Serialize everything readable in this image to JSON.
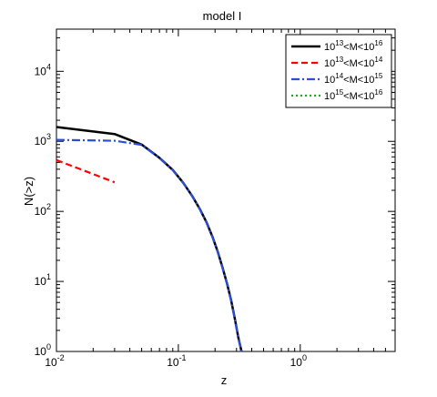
{
  "chart_data": {
    "type": "line",
    "title": "model I",
    "xlabel": "z",
    "ylabel": "N(>z)",
    "xscale": "log",
    "yscale": "log",
    "xlim": [
      0.01,
      6
    ],
    "ylim": [
      1,
      40000
    ],
    "x_ticks": [
      {
        "base": "10",
        "exp": "-2",
        "value": 0.01
      },
      {
        "base": "10",
        "exp": "-1",
        "value": 0.1
      },
      {
        "base": "10",
        "exp": "0",
        "value": 1
      }
    ],
    "y_ticks": [
      {
        "base": "10",
        "exp": "0",
        "value": 1
      },
      {
        "base": "10",
        "exp": "1",
        "value": 10
      },
      {
        "base": "10",
        "exp": "2",
        "value": 100
      },
      {
        "base": "10",
        "exp": "3",
        "value": 1000
      },
      {
        "base": "10",
        "exp": "4",
        "value": 10000
      }
    ],
    "grid": false,
    "legend_position": "top-right",
    "series": [
      {
        "name": "10^13<M<10^16",
        "label_parts": [
          "10",
          "13",
          "<M<10",
          "16"
        ],
        "color": "#000000",
        "style": "solid",
        "x": [
          0.01,
          0.03,
          0.05,
          0.07,
          0.09,
          0.11,
          0.13,
          0.15,
          0.17,
          0.19,
          0.21,
          0.23,
          0.25,
          0.27,
          0.29,
          0.31,
          0.33
        ],
        "y": [
          1600,
          1270,
          900,
          580,
          390,
          255,
          165,
          108,
          70,
          44,
          27,
          16,
          9.5,
          5.5,
          3.0,
          1.6,
          1.0
        ]
      },
      {
        "name": "10^13<M<10^14",
        "label_parts": [
          "10",
          "13",
          "<M<10",
          "14"
        ],
        "color": "#ff0000",
        "style": "dashed",
        "x": [
          0.01,
          0.03
        ],
        "y": [
          540,
          260
        ]
      },
      {
        "name": "10^14<M<10^15",
        "label_parts": [
          "10",
          "14",
          "<M<10",
          "15"
        ],
        "color": "#2a4fd6",
        "style": "dashdot",
        "x": [
          0.01,
          0.03,
          0.05,
          0.07,
          0.09,
          0.11,
          0.13,
          0.15,
          0.17,
          0.19,
          0.21,
          0.23,
          0.25,
          0.27,
          0.29,
          0.31,
          0.33
        ],
        "y": [
          1050,
          1020,
          890,
          575,
          388,
          254,
          164,
          107,
          69,
          43.5,
          26.8,
          15.8,
          9.4,
          5.4,
          2.95,
          1.58,
          1.0
        ]
      },
      {
        "name": "10^15<M<10^16",
        "label_parts": [
          "10",
          "15",
          "<M<10",
          "16"
        ],
        "color": "#2ca02c",
        "style": "dotted",
        "x": [],
        "y": []
      }
    ]
  }
}
